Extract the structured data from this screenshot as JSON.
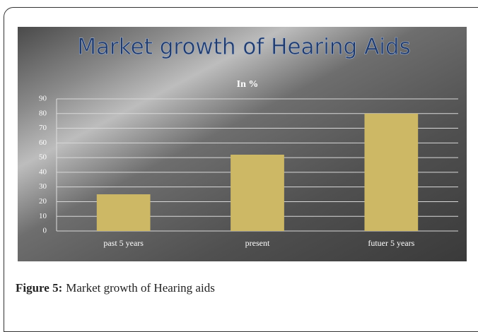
{
  "chart_data": {
    "type": "bar",
    "title": "Market growth of Hearing Aids",
    "subtitle": "In %",
    "categories": [
      "past 5 years",
      "present",
      "futuer 5 years"
    ],
    "values": [
      25,
      52,
      80
    ],
    "color": "#cdb865",
    "ylim": [
      0,
      90
    ],
    "yticks": [
      0,
      10,
      20,
      30,
      40,
      50,
      60,
      70,
      80,
      90
    ],
    "grid": true
  },
  "caption": {
    "label": "Figure 5:",
    "text": "Market growth of Hearing aids"
  }
}
